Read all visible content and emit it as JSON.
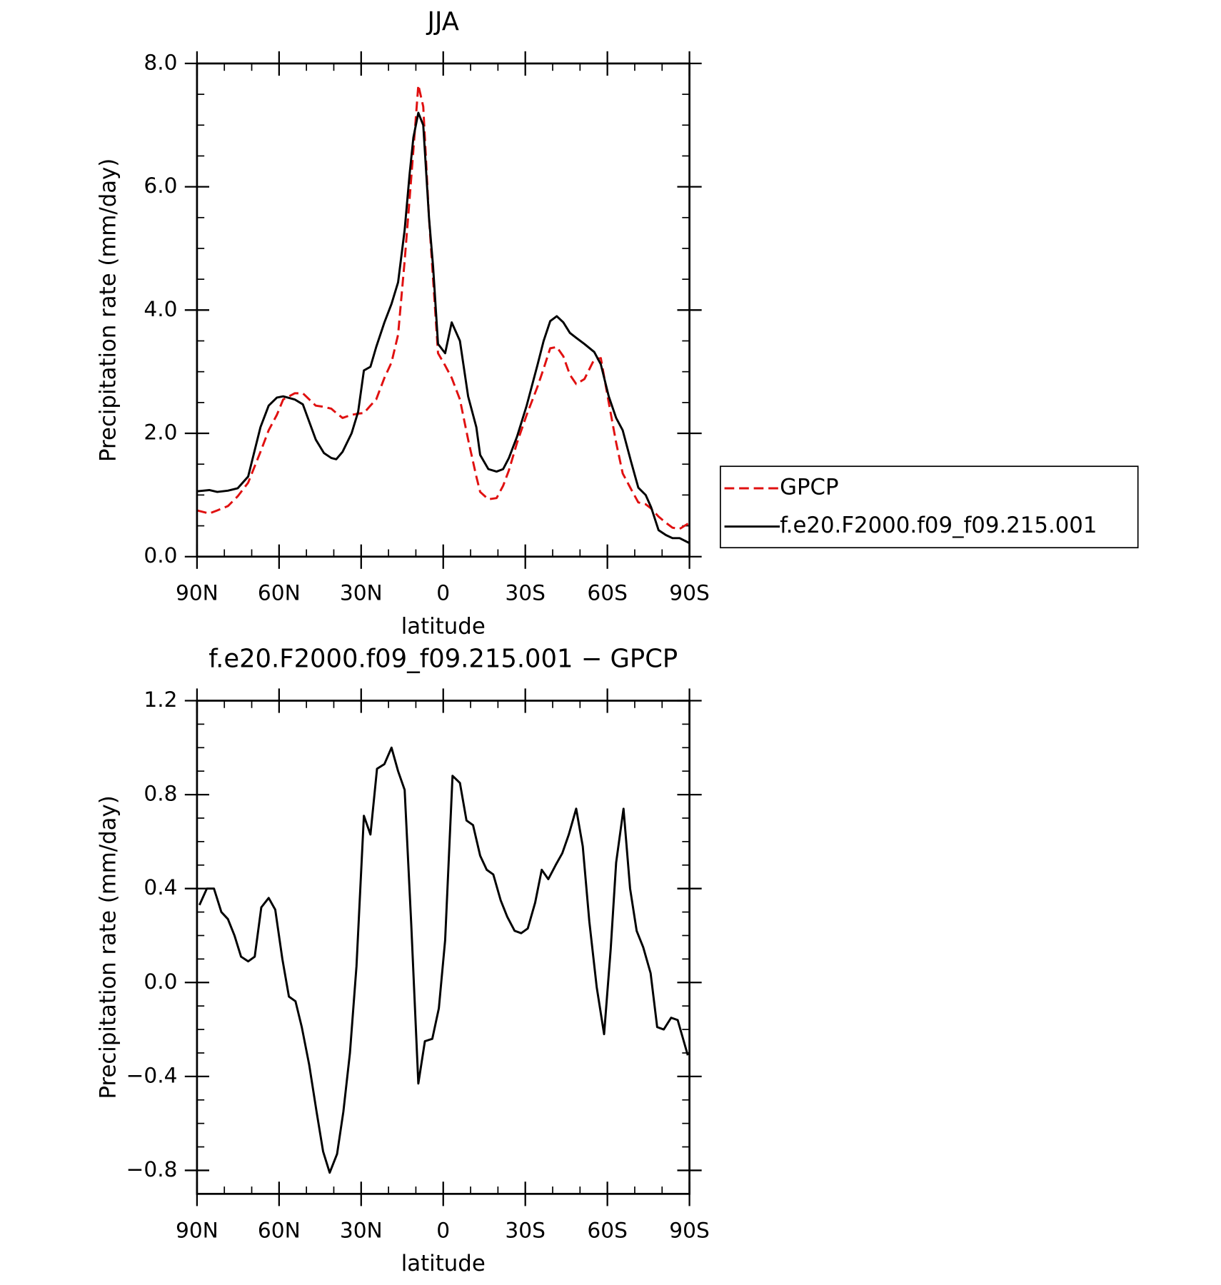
{
  "chart_data": [
    {
      "type": "line",
      "title": "JJA",
      "xlabel": "latitude",
      "ylabel": "Precipitation rate (mm/day)",
      "x": [
        90,
        85.5,
        82.6,
        78.7,
        75.1,
        71.3,
        66.8,
        63.8,
        60.8,
        58.5,
        54.3,
        51.3,
        46.6,
        43.6,
        40.9,
        39.1,
        36.8,
        33.5,
        31.1,
        29.0,
        26.6,
        24.5,
        21.5,
        18.9,
        16.5,
        14.1,
        12.3,
        10.9,
        9.1,
        7.3,
        5.2,
        3.7,
        1.9,
        -0.7,
        -3.1,
        -6.1,
        -9.1,
        -12.1,
        -13.5,
        -16.5,
        -19.5,
        -21.9,
        -24.0,
        -27.0,
        -30.5,
        -34.4,
        -36.7,
        -39.1,
        -41.5,
        -43.9,
        -46.3,
        -48.6,
        -51.6,
        -55.2,
        -57.6,
        -60.5,
        -63.2,
        -65.6,
        -68.6,
        -71.3,
        -74.0,
        -76.0,
        -78.7,
        -81.4,
        -83.8,
        -86.4,
        -90
      ],
      "series": [
        {
          "name": "GPCP",
          "color": "#e01010",
          "linestyle": "dashed",
          "values": [
            0.75,
            0.7,
            0.75,
            0.82,
            0.98,
            1.2,
            1.7,
            2.05,
            2.3,
            2.55,
            2.65,
            2.65,
            2.45,
            2.43,
            2.4,
            2.33,
            2.25,
            2.3,
            2.32,
            2.33,
            2.45,
            2.55,
            2.9,
            3.15,
            3.6,
            4.8,
            5.8,
            6.6,
            7.65,
            7.3,
            5.5,
            4.5,
            3.3,
            3.1,
            2.9,
            2.55,
            1.9,
            1.3,
            1.05,
            0.93,
            0.95,
            1.15,
            1.4,
            1.85,
            2.3,
            2.75,
            3.05,
            3.38,
            3.4,
            3.25,
            2.95,
            2.8,
            2.88,
            3.2,
            3.22,
            2.5,
            1.85,
            1.35,
            1.1,
            0.88,
            0.85,
            0.78,
            0.65,
            0.55,
            0.47,
            0.45,
            0.55
          ]
        },
        {
          "name": "f.e20.F2000.f09_f09.215.001",
          "color": "#000000",
          "linestyle": "solid",
          "values": [
            1.06,
            1.08,
            1.05,
            1.07,
            1.11,
            1.3,
            2.1,
            2.45,
            2.58,
            2.6,
            2.55,
            2.47,
            1.9,
            1.68,
            1.6,
            1.58,
            1.7,
            2.0,
            2.35,
            3.02,
            3.08,
            3.4,
            3.8,
            4.1,
            4.45,
            5.3,
            6.2,
            6.8,
            7.2,
            7.0,
            5.5,
            4.7,
            3.45,
            3.3,
            3.8,
            3.5,
            2.6,
            2.1,
            1.65,
            1.42,
            1.38,
            1.42,
            1.6,
            1.95,
            2.45,
            3.1,
            3.5,
            3.82,
            3.9,
            3.8,
            3.63,
            3.55,
            3.45,
            3.32,
            3.12,
            2.6,
            2.25,
            2.05,
            1.55,
            1.12,
            1.0,
            0.8,
            0.43,
            0.35,
            0.3,
            0.3,
            0.22
          ]
        }
      ],
      "xlim": [
        90,
        -90
      ],
      "xticks": [
        {
          "value": 90,
          "label": "90N"
        },
        {
          "value": 60,
          "label": "60N"
        },
        {
          "value": 30,
          "label": "30N"
        },
        0,
        {
          "value": -30,
          "label": "30S"
        },
        {
          "value": -60,
          "label": "60S"
        },
        {
          "value": -90,
          "label": "90S"
        }
      ],
      "ylim": [
        0,
        8
      ],
      "yticks": [
        {
          "value": 0,
          "label": "0.0"
        },
        {
          "value": 2,
          "label": "2.0"
        },
        {
          "value": 4,
          "label": "4.0"
        },
        {
          "value": 6,
          "label": "6.0"
        },
        {
          "value": 8,
          "label": "8.0"
        }
      ],
      "legend": "right"
    },
    {
      "type": "line",
      "title": "f.e20.F2000.f09_f09.215.001 − GPCP",
      "xlabel": "latitude",
      "ylabel": "Precipitation rate (mm/day)",
      "x": [
        89.1,
        86.4,
        83.8,
        81.1,
        78.7,
        76.3,
        73.9,
        71.3,
        68.9,
        66.5,
        63.8,
        61.4,
        58.8,
        56.4,
        54.0,
        51.7,
        49.0,
        46.3,
        43.9,
        41.5,
        38.8,
        36.5,
        34.1,
        31.7,
        29.0,
        26.6,
        24.2,
        21.5,
        18.9,
        16.5,
        14.1,
        11.7,
        9.1,
        6.7,
        4.0,
        1.6,
        -0.7,
        -3.4,
        -6.1,
        -8.5,
        -10.9,
        -13.5,
        -15.9,
        -18.3,
        -21.0,
        -23.4,
        -26.1,
        -28.5,
        -30.9,
        -33.6,
        -36.0,
        -38.4,
        -41.1,
        -43.5,
        -45.9,
        -48.6,
        -51.0,
        -53.4,
        -56.1,
        -58.8,
        -61.2,
        -63.2,
        -65.9,
        -68.3,
        -70.7,
        -73.1,
        -75.8,
        -78.2,
        -80.6,
        -83.3,
        -85.7,
        -89.4
      ],
      "series": [
        {
          "name": "f.e20.F2000.f09_f09.215.001 − GPCP",
          "color": "#000000",
          "linestyle": "solid",
          "values": [
            0.33,
            0.4,
            0.4,
            0.3,
            0.27,
            0.2,
            0.11,
            0.09,
            0.11,
            0.32,
            0.36,
            0.31,
            0.1,
            -0.06,
            -0.08,
            -0.19,
            -0.35,
            -0.55,
            -0.72,
            -0.81,
            -0.73,
            -0.55,
            -0.3,
            0.07,
            0.71,
            0.63,
            0.91,
            0.93,
            1.0,
            0.9,
            0.82,
            0.25,
            -0.43,
            -0.25,
            -0.24,
            -0.11,
            0.18,
            0.88,
            0.85,
            0.69,
            0.67,
            0.54,
            0.48,
            0.46,
            0.35,
            0.28,
            0.22,
            0.21,
            0.23,
            0.34,
            0.48,
            0.44,
            0.5,
            0.55,
            0.63,
            0.74,
            0.58,
            0.26,
            -0.02,
            -0.22,
            0.14,
            0.51,
            0.74,
            0.4,
            0.22,
            0.15,
            0.04,
            -0.19,
            -0.2,
            -0.15,
            -0.16,
            -0.31
          ]
        }
      ],
      "xlim": [
        90,
        -90
      ],
      "xticks": [
        {
          "value": 90,
          "label": "90N"
        },
        {
          "value": 60,
          "label": "60N"
        },
        {
          "value": 30,
          "label": "30N"
        },
        0,
        {
          "value": -30,
          "label": "30S"
        },
        {
          "value": -60,
          "label": "60S"
        },
        {
          "value": -90,
          "label": "90S"
        }
      ],
      "ylim": [
        -0.9,
        1.2
      ],
      "yticks": [
        1.2,
        0.8,
        0.4,
        {
          "value": 0,
          "label": "0.0"
        },
        {
          "value": -0.4,
          "label": "−0.4"
        },
        {
          "value": -0.8,
          "label": "−0.8"
        }
      ]
    }
  ]
}
